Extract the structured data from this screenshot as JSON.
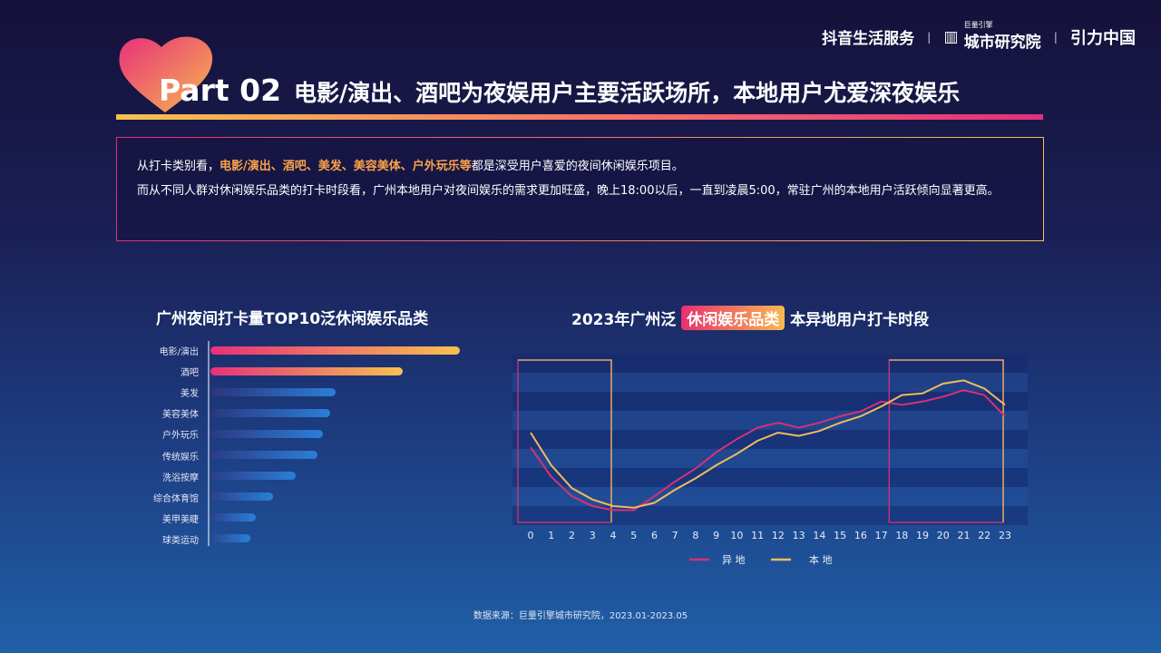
{
  "header": {
    "logos": [
      "抖音生活服务",
      "巨量引擎",
      "城市研究院",
      "引力中国"
    ]
  },
  "title": {
    "part": "Part 02",
    "main": "电影/演出、酒吧为夜娱用户主要活跃场所，本地用户尤爱深夜娱乐"
  },
  "summary": {
    "l1_a": "从打卡类别看，",
    "l1_hl": "电影/演出、酒吧、美发、美容美体、户外玩乐等",
    "l1_b": "都是深受用户喜爱的夜间休闲娱乐项目。",
    "l2": "而从不同人群对休闲娱乐品类的打卡时段看，广州本地用户对夜间娱乐的需求更加旺盛，晚上18:00以后，一直到凌晨5:00，常驻广州的本地用户活跃倾向显著更高。"
  },
  "chart_data": [
    {
      "type": "bar",
      "orientation": "horizontal",
      "title": "广州夜间打卡量TOP10泛休闲娱乐品类",
      "categories": [
        "电影/演出",
        "酒吧",
        "美发",
        "美容美体",
        "户外玩乐",
        "传统娱乐",
        "洗浴按摩",
        "综合体育馆",
        "美甲美睫",
        "球类运动"
      ],
      "values": [
        100,
        77,
        50,
        48,
        45,
        43,
        34,
        25,
        18,
        16
      ],
      "colors": {
        "top": [
          "#e8307a",
          "#f6c14f"
        ],
        "rest": [
          "#6a2c8c",
          "#2a7fd8"
        ]
      }
    },
    {
      "type": "line",
      "title_a": "2023年广州泛",
      "title_pill": "休闲娱乐品类",
      "title_b": "本异地用户打卡时段",
      "x": [
        0,
        1,
        2,
        3,
        4,
        5,
        6,
        7,
        8,
        9,
        10,
        11,
        12,
        13,
        14,
        15,
        16,
        17,
        18,
        19,
        20,
        21,
        22,
        23
      ],
      "series": [
        {
          "name": "异 地",
          "color": "#d6307a",
          "values": [
            46,
            28,
            16,
            10,
            7.5,
            7.5,
            16,
            25,
            33,
            43,
            51,
            58,
            61,
            58,
            61,
            65,
            68,
            74,
            72,
            74,
            77,
            81,
            78,
            65
          ]
        },
        {
          "name": "本 地",
          "color": "#f2bb5c",
          "values": [
            55,
            35,
            21,
            14,
            10,
            9,
            12,
            20,
            27,
            35,
            42,
            50,
            55,
            53,
            56,
            61,
            65,
            71,
            78,
            79,
            85,
            87,
            82,
            72
          ]
        }
      ],
      "ylim": [
        0,
        100
      ],
      "highlight_ranges": [
        [
          0,
          4
        ],
        [
          18,
          23
        ]
      ],
      "legend": "bottom"
    }
  ],
  "source": "数据来源：巨量引擎城市研究院，2023.01-2023.05"
}
